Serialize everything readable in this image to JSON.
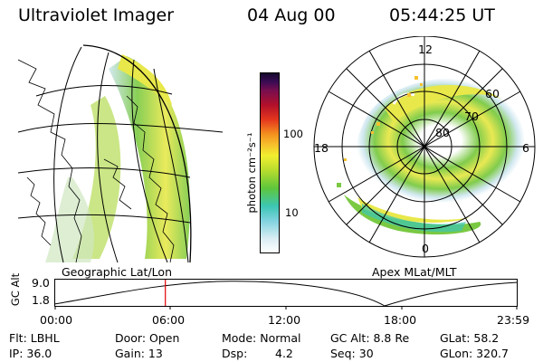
{
  "header": {
    "title": "Ultraviolet Imager",
    "date": "04 Aug 00",
    "time": "05:44:25 UT"
  },
  "colors": {
    "aurora_low": "#cfe7f0",
    "aurora_mid": "#7ac943",
    "aurora_high": "#e8e84a",
    "aurora_peak": "#f5a623",
    "colorbar": [
      "#ffffff",
      "#d9eef3",
      "#7fd3df",
      "#3cc6b4",
      "#5fc63b",
      "#b9dd2e",
      "#f1ef2f",
      "#f6c12c",
      "#f4901f",
      "#e5371d",
      "#b3102a",
      "#7a0e4f",
      "#3a0b54",
      "#130a2a"
    ]
  },
  "left_panel": {
    "label": "Geographic Lat/Lon",
    "icon": "geographic-projection-map-icon"
  },
  "colorbar": {
    "unit_label": "photon cm⁻²s⁻¹",
    "tick_100": "100",
    "tick_10": "10"
  },
  "right_panel": {
    "label": "Apex MLat/MLT",
    "mlt_top": "12",
    "mlt_left": "18",
    "mlt_right": "6",
    "mlt_bottom": "0",
    "lat_60": "60",
    "lat_70": "70",
    "lat_80": "80"
  },
  "altitude": {
    "ylabel": "GC Alt",
    "ytick_top": "9.0",
    "ytick_bottom": "1.8",
    "xticks": [
      "00:00",
      "06:00",
      "12:00",
      "18:00",
      "23:59"
    ],
    "marker_time_hours": 5.74
  },
  "info": {
    "filter": "Flt: LBHL",
    "door": "Door: Open",
    "mode": "Mode: Normal",
    "gc_alt": "GC Alt: 8.8 Re",
    "glat": "GLat: 58.2",
    "ip": "IP: 36.0",
    "gain": "Gain: 13",
    "dsp_label": "Dsp:",
    "dsp_value": "4.2",
    "seq": "Seq: 30",
    "glon": "GLon: 320.7"
  }
}
